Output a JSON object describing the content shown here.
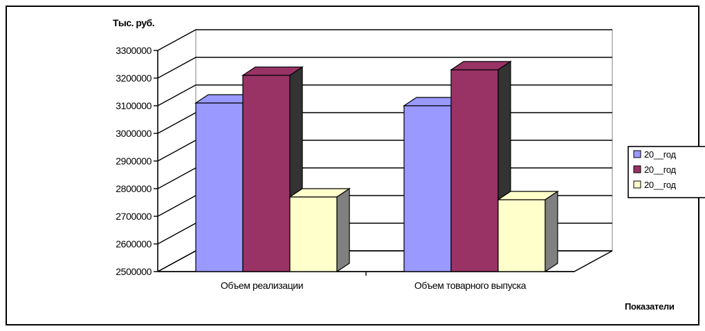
{
  "chart_data": {
    "type": "bar",
    "ylabel": "Тыс. руб.",
    "xlabel": "Показатели",
    "categories": [
      "Объем реализации",
      "Объем товарного выпуска"
    ],
    "yticks": [
      "2500000",
      "2600000",
      "2700000",
      "2800000",
      "2900000",
      "3000000",
      "3100000",
      "3200000",
      "3300000"
    ],
    "ylim": [
      2500000,
      3300000
    ],
    "series": [
      {
        "name": "20__год",
        "values": [
          3110000,
          3100000
        ],
        "color": "#9999ff",
        "side": "#333333"
      },
      {
        "name": "20__год",
        "values": [
          3210000,
          3230000
        ],
        "color": "#993366",
        "side": "#333333"
      },
      {
        "name": "20__год",
        "values": [
          2770000,
          2760000
        ],
        "color": "#ffffcc",
        "side": "#808080"
      }
    ],
    "grid": true,
    "legend": "right",
    "three_d": true
  }
}
